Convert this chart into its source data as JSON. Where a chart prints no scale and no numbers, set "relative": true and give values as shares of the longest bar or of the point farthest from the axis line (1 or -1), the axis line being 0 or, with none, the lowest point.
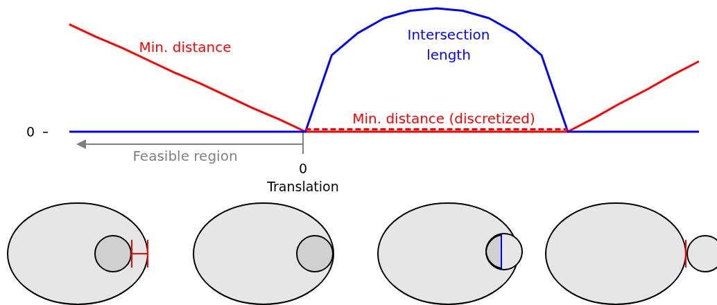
{
  "chart_data": {
    "type": "line",
    "relative": true,
    "xlabel": "Translation",
    "marker": "none",
    "categories": [
      null,
      null,
      null,
      null,
      null,
      null,
      null,
      null,
      null,
      null,
      null,
      null,
      null,
      null,
      null,
      null,
      null,
      null,
      null,
      null,
      null,
      null,
      null,
      null,
      null
    ],
    "series": [
      {
        "name": "Min. distance",
        "color": "#ff0000",
        "values": [
          0.87,
          0.77,
          0.68,
          0.58,
          0.48,
          0.39,
          0.29,
          0.19,
          0.1,
          0,
          0,
          0,
          0,
          0,
          0,
          0,
          0,
          0,
          0,
          0,
          0.11,
          0.23,
          0.34,
          0.46,
          0.57
        ]
      },
      {
        "name": "Intersection length",
        "color": "#0000ff",
        "values": [
          0,
          0,
          0,
          0,
          0,
          0,
          0,
          0,
          0,
          0,
          0.62,
          0.8,
          0.92,
          0.98,
          1,
          0.98,
          0.92,
          0.8,
          0.62,
          0,
          0,
          0,
          0,
          0,
          0
        ]
      },
      {
        "name": "Min. distance (discretized)",
        "color": "#ff0000",
        "line_style": "dashed",
        "values": [
          null,
          null,
          null,
          null,
          null,
          null,
          null,
          null,
          null,
          0.02,
          0.02,
          0.02,
          0.02,
          0.02,
          0.02,
          0.02,
          0.02,
          0.02,
          0.02,
          0.02,
          null,
          null,
          null,
          null,
          null
        ]
      }
    ],
    "annotations": [
      "0",
      "0",
      "Feasible region"
    ]
  }
}
